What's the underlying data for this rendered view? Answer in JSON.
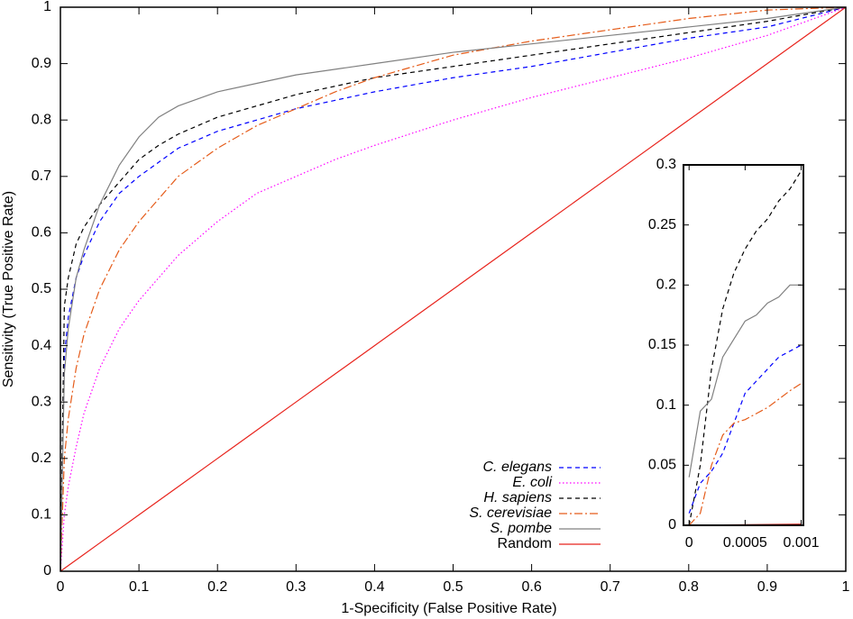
{
  "chart_data": [
    {
      "type": "line",
      "xlabel": "1-Specificity (False Positive Rate)",
      "ylabel": "Sensitivity (True Positive Rate)",
      "xlim": [
        0,
        1
      ],
      "ylim": [
        0,
        1
      ],
      "xticks": [
        0,
        0.1,
        0.2,
        0.3,
        0.4,
        0.5,
        0.6,
        0.7,
        0.8,
        0.9,
        1
      ],
      "yticks": [
        0,
        0.1,
        0.2,
        0.3,
        0.4,
        0.5,
        0.6,
        0.7,
        0.8,
        0.9,
        1
      ],
      "grid": false,
      "x": [
        0,
        0.005,
        0.01,
        0.02,
        0.03,
        0.05,
        0.075,
        0.1,
        0.125,
        0.15,
        0.2,
        0.25,
        0.3,
        0.35,
        0.4,
        0.5,
        0.6,
        0.7,
        0.8,
        0.9,
        1
      ],
      "series": [
        {
          "name": "C. elegans",
          "italic": true,
          "color": "#0000ff",
          "style": "dashed",
          "values": [
            0,
            0.38,
            0.45,
            0.52,
            0.56,
            0.62,
            0.67,
            0.7,
            0.725,
            0.75,
            0.78,
            0.8,
            0.82,
            0.835,
            0.85,
            0.875,
            0.895,
            0.92,
            0.945,
            0.965,
            1
          ]
        },
        {
          "name": "E. coli",
          "italic": true,
          "color": "#ff00ff",
          "style": "dotted",
          "values": [
            0,
            0.1,
            0.15,
            0.22,
            0.28,
            0.36,
            0.43,
            0.48,
            0.52,
            0.56,
            0.62,
            0.67,
            0.7,
            0.73,
            0.755,
            0.8,
            0.84,
            0.875,
            0.91,
            0.95,
            1
          ]
        },
        {
          "name": "H. sapiens",
          "italic": true,
          "color": "#000000",
          "style": "dashed",
          "values": [
            0,
            0.47,
            0.52,
            0.58,
            0.61,
            0.65,
            0.69,
            0.73,
            0.755,
            0.775,
            0.805,
            0.825,
            0.845,
            0.86,
            0.875,
            0.895,
            0.915,
            0.935,
            0.955,
            0.975,
            1
          ]
        },
        {
          "name": "S. cerevisiae",
          "italic": true,
          "color": "#e55c1a",
          "style": "dashdot",
          "values": [
            0,
            0.2,
            0.27,
            0.36,
            0.42,
            0.5,
            0.57,
            0.62,
            0.66,
            0.7,
            0.75,
            0.79,
            0.82,
            0.85,
            0.875,
            0.915,
            0.94,
            0.96,
            0.98,
            0.995,
            1
          ]
        },
        {
          "name": "S. pombe",
          "italic": true,
          "color": "#808080",
          "style": "solid",
          "values": [
            0,
            0.35,
            0.43,
            0.52,
            0.57,
            0.65,
            0.72,
            0.77,
            0.805,
            0.825,
            0.85,
            0.865,
            0.88,
            0.89,
            0.9,
            0.92,
            0.935,
            0.95,
            0.965,
            0.98,
            1
          ]
        },
        {
          "name": "Random",
          "italic": false,
          "color": "#e8231c",
          "style": "solid",
          "values": [
            0,
            0.005,
            0.01,
            0.02,
            0.03,
            0.05,
            0.075,
            0.1,
            0.125,
            0.15,
            0.2,
            0.25,
            0.3,
            0.35,
            0.4,
            0.5,
            0.6,
            0.7,
            0.8,
            0.9,
            1
          ]
        }
      ]
    },
    {
      "type": "line",
      "xlim": [
        -5e-05,
        0.00102
      ],
      "ylim": [
        0,
        0.3
      ],
      "xticks": [
        0,
        0.0005,
        0.001
      ],
      "yticks": [
        0,
        0.05,
        0.1,
        0.15,
        0.2,
        0.25,
        0.3
      ],
      "grid": false,
      "x": [
        0,
        0.0001,
        0.0002,
        0.0003,
        0.0004,
        0.0005,
        0.0006,
        0.0007,
        0.0008,
        0.0009,
        0.001
      ],
      "series": [
        {
          "color": "#0000ff",
          "style": "dashed",
          "values": [
            0.01,
            0.035,
            0.045,
            0.06,
            0.085,
            0.11,
            0.12,
            0.13,
            0.14,
            0.145,
            0.15
          ]
        },
        {
          "color": "#000000",
          "style": "dashed",
          "values": [
            0,
            0.05,
            0.13,
            0.18,
            0.21,
            0.23,
            0.245,
            0.255,
            0.27,
            0.28,
            0.295
          ]
        },
        {
          "color": "#e55c1a",
          "style": "dashdot",
          "values": [
            0,
            0.01,
            0.05,
            0.075,
            0.085,
            0.088,
            0.093,
            0.098,
            0.105,
            0.112,
            0.118
          ]
        },
        {
          "color": "#808080",
          "style": "solid",
          "values": [
            0.04,
            0.095,
            0.105,
            0.14,
            0.155,
            0.17,
            0.175,
            0.185,
            0.19,
            0.2,
            0.2
          ]
        },
        {
          "color": "#e8231c",
          "style": "solid",
          "values": [
            0,
            0.0001,
            0.0002,
            0.0003,
            0.0004,
            0.0005,
            0.0006,
            0.0007,
            0.0008,
            0.0009,
            0.001
          ]
        }
      ]
    }
  ]
}
